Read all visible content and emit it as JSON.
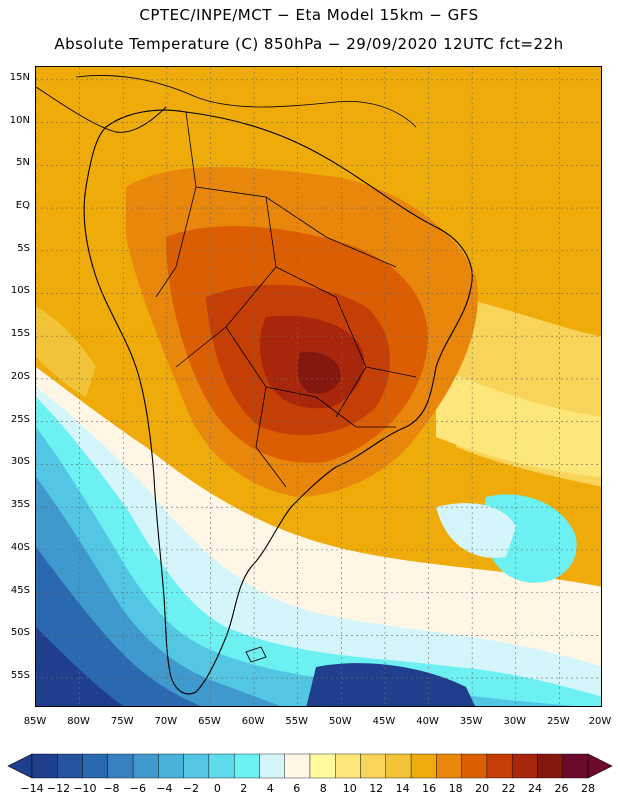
{
  "header": {
    "line1": "CPTEC/INPE/MCT −  Eta Model 15km − GFS",
    "line2": "Absolute Temperature (C) 850hPa − 29/09/2020 12UTC fct=22h"
  },
  "map": {
    "lat_labels": [
      "15N",
      "10N",
      "5N",
      "EQ",
      "5S",
      "10S",
      "15S",
      "20S",
      "25S",
      "30S",
      "35S",
      "40S",
      "45S",
      "50S",
      "55S"
    ],
    "lon_labels": [
      "85W",
      "80W",
      "75W",
      "70W",
      "65W",
      "60W",
      "55W",
      "50W",
      "45W",
      "40W",
      "35W",
      "30W",
      "25W",
      "20W"
    ],
    "lat_range": [
      16.5,
      -58.5
    ],
    "lon_range": [
      -85,
      -20
    ]
  },
  "colorbar": {
    "labels": [
      "-14",
      "-12",
      "-10",
      "-8",
      "-6",
      "-4",
      "-2",
      "0",
      "2",
      "4",
      "6",
      "8",
      "10",
      "12",
      "14",
      "16",
      "18",
      "20",
      "22",
      "24",
      "26",
      "28"
    ],
    "colors": [
      "#1f3e8c",
      "#26539e",
      "#2a69b0",
      "#3781bf",
      "#3f99cc",
      "#47b1d9",
      "#52c6e3",
      "#5fdcec",
      "#6cf0f2",
      "#d4f6fa",
      "#fff6e6",
      "#fffaa0",
      "#fde67a",
      "#f8d55a",
      "#f2c338",
      "#efab0a",
      "#e8870c",
      "#dc5e02",
      "#c43e06",
      "#a8260c",
      "#84180e",
      "#6b0a2c"
    ]
  },
  "colors": {
    "warm_core": "#8a2a06",
    "ocean_cold": "#1f3e8c",
    "land_default": "#efab0a"
  }
}
